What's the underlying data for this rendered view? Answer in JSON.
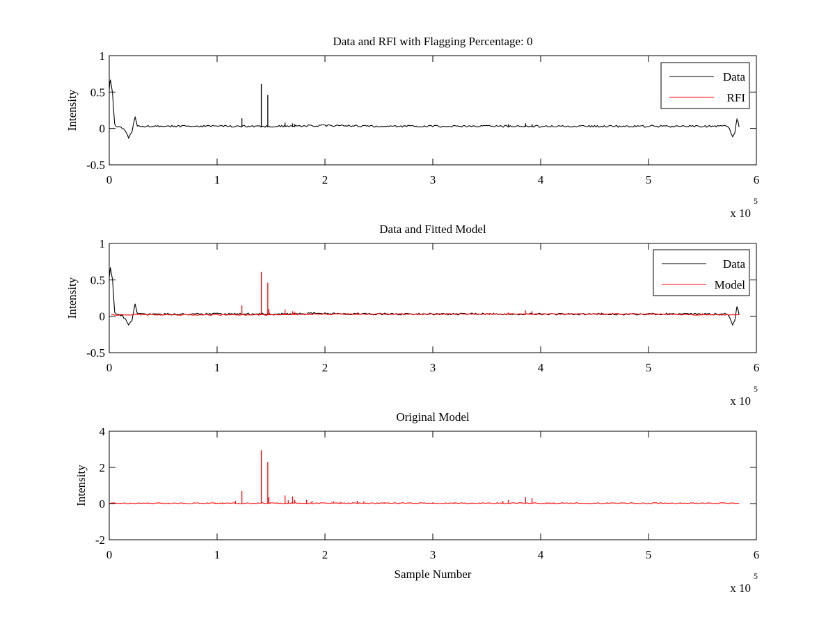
{
  "chart_data": [
    {
      "type": "line",
      "title": "Data and RFI with Flagging Percentage: 0",
      "xlabel": "",
      "ylabel": "Intensity",
      "xlim": [
        0,
        6
      ],
      "ylim": [
        -0.5,
        1
      ],
      "xticks": [
        "0",
        "1",
        "2",
        "3",
        "4",
        "5",
        "6"
      ],
      "yticks": [
        "-0.5",
        "0",
        "0.5",
        "1"
      ],
      "x_multiplier": {
        "base": "x 10",
        "exponent": "5"
      },
      "grid": false,
      "legend_position": "top-right",
      "series": [
        {
          "name": "Data",
          "color": "#000000",
          "points": [
            [
              0,
              0.55
            ],
            [
              0.01,
              0.67
            ],
            [
              0.03,
              0.5
            ],
            [
              0.05,
              0.05
            ],
            [
              0.08,
              0.02
            ],
            [
              0.12,
              0.01
            ],
            [
              0.15,
              -0.04
            ],
            [
              0.18,
              -0.12
            ],
            [
              0.21,
              -0.05
            ],
            [
              0.24,
              0.16
            ],
            [
              0.26,
              0.03
            ],
            [
              0.4,
              0.03
            ],
            [
              0.8,
              0.03
            ],
            [
              1.2,
              0.03
            ],
            [
              1.6,
              0.03
            ],
            [
              2.0,
              0.04
            ],
            [
              2.5,
              0.03
            ],
            [
              3.0,
              0.03
            ],
            [
              3.5,
              0.03
            ],
            [
              4.0,
              0.03
            ],
            [
              4.5,
              0.03
            ],
            [
              5.0,
              0.03
            ],
            [
              5.5,
              0.03
            ],
            [
              5.72,
              0.03
            ],
            [
              5.75,
              0.0
            ],
            [
              5.78,
              -0.12
            ],
            [
              5.8,
              -0.05
            ],
            [
              5.82,
              0.14
            ],
            [
              5.84,
              0.02
            ]
          ],
          "spikes": [
            [
              1.23,
              0.14
            ],
            [
              1.41,
              0.61
            ],
            [
              1.47,
              0.46
            ],
            [
              1.63,
              0.08
            ],
            [
              1.7,
              0.07
            ],
            [
              1.72,
              0.06
            ],
            [
              3.7,
              0.06
            ],
            [
              3.86,
              0.07
            ],
            [
              3.92,
              0.06
            ]
          ]
        },
        {
          "name": "RFI",
          "color": "#ff0000",
          "points": []
        }
      ]
    },
    {
      "type": "line",
      "title": "Data and Fitted Model",
      "xlabel": "",
      "ylabel": "Intensity",
      "xlim": [
        0,
        6
      ],
      "ylim": [
        -0.5,
        1
      ],
      "xticks": [
        "0",
        "1",
        "2",
        "3",
        "4",
        "5",
        "6"
      ],
      "yticks": [
        "-0.5",
        "0",
        "0.5",
        "1"
      ],
      "x_multiplier": {
        "base": "x 10",
        "exponent": "5"
      },
      "grid": false,
      "legend_position": "top-right",
      "series": [
        {
          "name": "Data",
          "color": "#000000",
          "points": [
            [
              0,
              0.55
            ],
            [
              0.01,
              0.67
            ],
            [
              0.03,
              0.5
            ],
            [
              0.05,
              0.05
            ],
            [
              0.08,
              0.02
            ],
            [
              0.12,
              0.01
            ],
            [
              0.15,
              -0.04
            ],
            [
              0.18,
              -0.12
            ],
            [
              0.21,
              -0.05
            ],
            [
              0.24,
              0.16
            ],
            [
              0.26,
              0.03
            ],
            [
              0.4,
              0.03
            ],
            [
              0.8,
              0.03
            ],
            [
              1.2,
              0.03
            ],
            [
              1.6,
              0.03
            ],
            [
              2.0,
              0.04
            ],
            [
              2.5,
              0.03
            ],
            [
              3.0,
              0.03
            ],
            [
              3.5,
              0.03
            ],
            [
              4.0,
              0.03
            ],
            [
              4.5,
              0.03
            ],
            [
              5.0,
              0.03
            ],
            [
              5.5,
              0.03
            ],
            [
              5.72,
              0.03
            ],
            [
              5.75,
              0.0
            ],
            [
              5.78,
              -0.12
            ],
            [
              5.8,
              -0.05
            ],
            [
              5.82,
              0.14
            ],
            [
              5.84,
              0.02
            ]
          ],
          "spikes": []
        },
        {
          "name": "Model",
          "color": "#ff0000",
          "points": [
            [
              0.02,
              0.02
            ],
            [
              0.5,
              0.02
            ],
            [
              1.0,
              0.02
            ],
            [
              1.5,
              0.02
            ],
            [
              2.0,
              0.03
            ],
            [
              2.5,
              0.03
            ],
            [
              3.0,
              0.03
            ],
            [
              3.5,
              0.03
            ],
            [
              4.0,
              0.03
            ],
            [
              4.5,
              0.03
            ],
            [
              5.0,
              0.03
            ],
            [
              5.5,
              0.02
            ],
            [
              5.84,
              0.02
            ]
          ],
          "spikes": [
            [
              1.23,
              0.15
            ],
            [
              1.41,
              0.61
            ],
            [
              1.47,
              0.46
            ],
            [
              1.48,
              0.1
            ],
            [
              1.63,
              0.09
            ],
            [
              1.7,
              0.07
            ],
            [
              1.72,
              0.06
            ],
            [
              2.3,
              0.05
            ],
            [
              3.7,
              0.05
            ],
            [
              3.86,
              0.08
            ],
            [
              3.92,
              0.07
            ],
            [
              5.5,
              0.04
            ]
          ]
        }
      ]
    },
    {
      "type": "line",
      "title": "Original Model",
      "xlabel": "Sample Number",
      "ylabel": "Intensity",
      "xlim": [
        0,
        6
      ],
      "ylim": [
        -2,
        4
      ],
      "xticks": [
        "0",
        "1",
        "2",
        "3",
        "4",
        "5",
        "6"
      ],
      "yticks": [
        "-2",
        "0",
        "2",
        "4"
      ],
      "x_multiplier": {
        "base": "x 10",
        "exponent": "5"
      },
      "grid": false,
      "series": [
        {
          "color": "#ff0000",
          "points": [
            [
              0,
              0.02
            ],
            [
              5.84,
              0.02
            ]
          ],
          "spikes": [
            [
              0.05,
              0.06
            ],
            [
              0.35,
              0.05
            ],
            [
              0.55,
              0.05
            ],
            [
              0.78,
              0.05
            ],
            [
              0.98,
              0.06
            ],
            [
              1.05,
              0.06
            ],
            [
              1.17,
              0.15
            ],
            [
              1.23,
              0.7
            ],
            [
              1.41,
              2.95
            ],
            [
              1.47,
              2.3
            ],
            [
              1.48,
              0.35
            ],
            [
              1.63,
              0.45
            ],
            [
              1.66,
              0.18
            ],
            [
              1.7,
              0.4
            ],
            [
              1.72,
              0.2
            ],
            [
              1.83,
              0.2
            ],
            [
              1.88,
              0.15
            ],
            [
              2.08,
              0.12
            ],
            [
              2.14,
              0.1
            ],
            [
              2.3,
              0.15
            ],
            [
              2.36,
              0.12
            ],
            [
              2.55,
              0.07
            ],
            [
              3.0,
              0.07
            ],
            [
              3.2,
              0.06
            ],
            [
              3.45,
              0.05
            ],
            [
              3.65,
              0.15
            ],
            [
              3.7,
              0.2
            ],
            [
              3.86,
              0.35
            ],
            [
              3.92,
              0.3
            ],
            [
              4.05,
              0.06
            ],
            [
              4.12,
              0.06
            ],
            [
              4.5,
              0.05
            ],
            [
              5.0,
              0.04
            ],
            [
              5.55,
              0.05
            ],
            [
              5.7,
              0.05
            ]
          ]
        }
      ]
    }
  ]
}
